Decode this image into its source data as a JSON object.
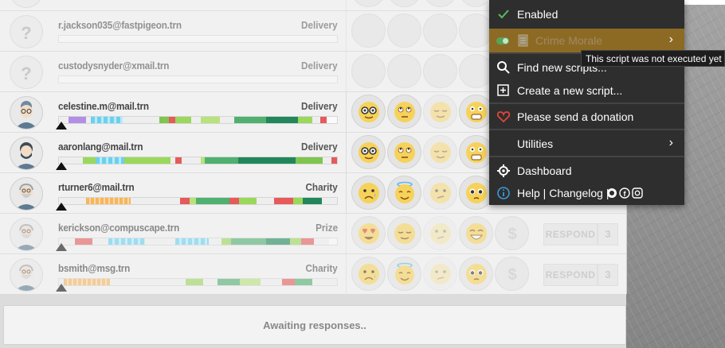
{
  "rows": [
    {
      "email": "r.jackson035@fastpigeon.trn",
      "type": "Delivery",
      "avatar": "unknown"
    },
    {
      "email": "custodysnyder@xmail.trn",
      "type": "Delivery",
      "avatar": "unknown"
    },
    {
      "email": "celestine.m@mail.trn",
      "type": "Delivery",
      "avatar": "woman-icon"
    },
    {
      "email": "aaronlang@mail.trn",
      "type": "Delivery",
      "avatar": "bearded-man-icon"
    },
    {
      "email": "rturner6@mail.trn",
      "type": "Charity",
      "avatar": "old-man-icon"
    },
    {
      "email": "kerickson@compuscape.trn",
      "type": "Prize",
      "avatar": "old-man-icon"
    },
    {
      "email": "bsmith@msg.trn",
      "type": "Charity",
      "avatar": "old-man-icon"
    }
  ],
  "row_actions": [
    {
      "respond_label": "RESPOND",
      "count": "3"
    },
    {
      "respond_label": "RESPOND",
      "count": "3"
    }
  ],
  "status": "Awaiting responses..",
  "menu": {
    "enabled": "Enabled",
    "script_name": "Crime Morale",
    "find": "Find new scripts...",
    "create": "Create a new script...",
    "donate": "Please send a donation",
    "utilities": "Utilities",
    "dashboard": "Dashboard",
    "help": "Help | Changelog |"
  },
  "tooltip": "This script was not executed yet",
  "colors": {
    "menu_bg": "#2e2e2e",
    "menu_highlight": "#8d6a24",
    "check_green": "#5cb85c",
    "heart_red": "#e0453a",
    "info_blue": "#3a9ad9"
  }
}
